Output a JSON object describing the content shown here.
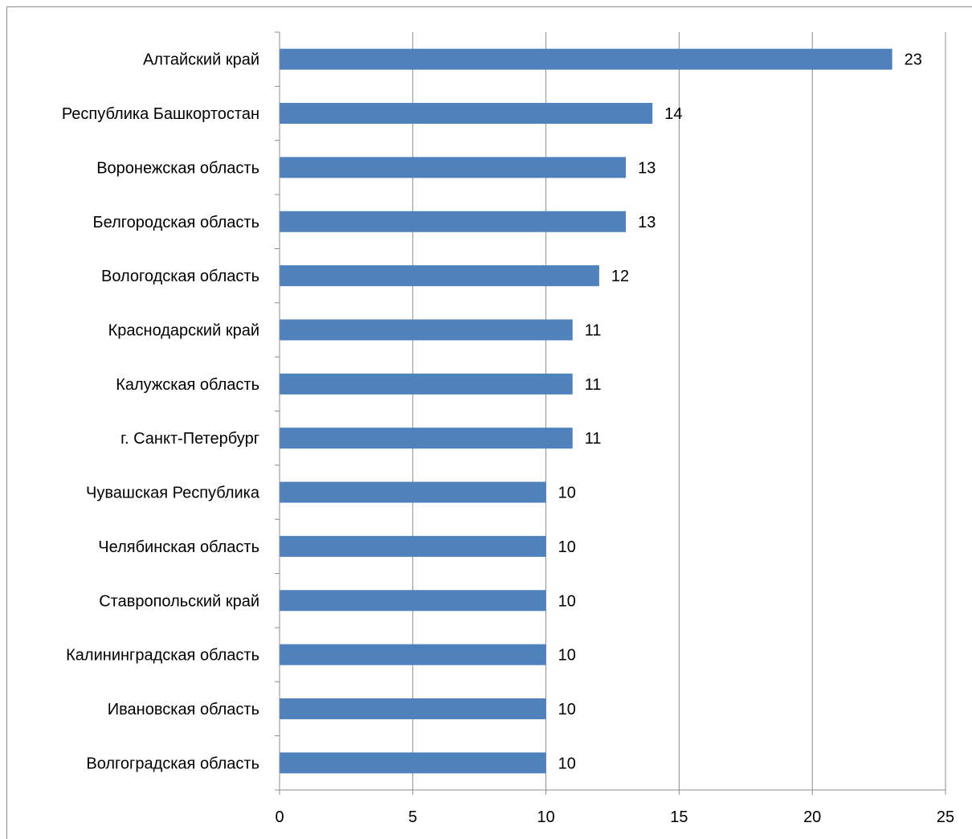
{
  "chart_data": {
    "type": "bar",
    "orientation": "horizontal",
    "categories": [
      "Алтайский край",
      "Республика Башкортостан",
      "Воронежская область",
      "Белгородская область",
      "Вологодская область",
      "Краснодарский край",
      "Калужская область",
      "г. Санкт-Петербург",
      "Чувашская Республика",
      "Челябинская область",
      "Ставропольский край",
      "Калининградская область",
      "Ивановская область",
      "Волгоградская область"
    ],
    "values": [
      23,
      14,
      13,
      13,
      12,
      11,
      11,
      11,
      10,
      10,
      10,
      10,
      10,
      10
    ],
    "value_labels": [
      "23",
      "14",
      "13",
      "13",
      "12",
      "11",
      "11",
      "11",
      "10",
      "10",
      "10",
      "10",
      "10",
      "10"
    ],
    "xlim": [
      0,
      25
    ],
    "x_ticks": [
      "0",
      "5",
      "10",
      "15",
      "20",
      "25"
    ],
    "x_tick_values": [
      0,
      5,
      10,
      15,
      20,
      25
    ],
    "grid": "vertical major gridlines",
    "legend": "none",
    "title": "",
    "xlabel": "",
    "ylabel": "",
    "colors": {
      "bar": "#4f81bd",
      "grid": "#8c8c8c",
      "axis": "#8c8c8c",
      "text": "#000000"
    }
  }
}
